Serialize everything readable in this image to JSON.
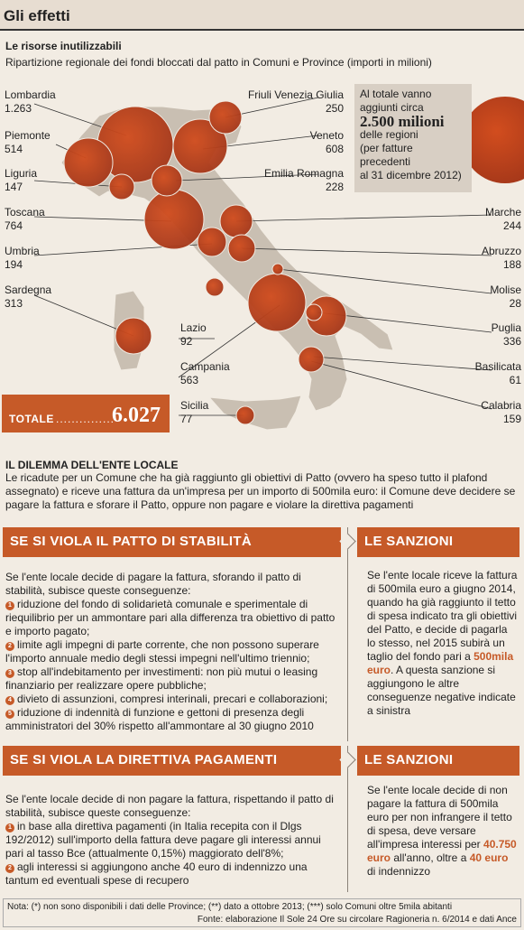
{
  "header": {
    "title": "Gli effetti"
  },
  "subtitle": "Le risorse inutilizzabili",
  "description": "Ripartizione regionale dei fondi bloccati dal patto in Comuni e Province (importi in milioni)",
  "regions_left": [
    {
      "name": "Lombardia",
      "value": "1.263"
    },
    {
      "name": "Piemonte",
      "value": "514"
    },
    {
      "name": "Liguria",
      "value": "147"
    },
    {
      "name": "Toscana",
      "value": "764"
    },
    {
      "name": "Umbria",
      "value": "194"
    },
    {
      "name": "Sardegna",
      "value": "313"
    }
  ],
  "regions_right": [
    {
      "name": "Friuli Venezia Giulia",
      "value": "250"
    },
    {
      "name": "Veneto",
      "value": "608"
    },
    {
      "name": "Emilia Romagna",
      "value": "228"
    },
    {
      "name": "Marche",
      "value": "244"
    },
    {
      "name": "Abruzzo",
      "value": "188"
    },
    {
      "name": "Molise",
      "value": "28"
    },
    {
      "name": "Puglia",
      "value": "336"
    },
    {
      "name": "Basilicata",
      "value": "61"
    },
    {
      "name": "Calabria",
      "value": "159"
    }
  ],
  "regions_center": [
    {
      "name": "Lazio",
      "value": "92"
    },
    {
      "name": "Campania",
      "value": "563"
    },
    {
      "name": "Sicilia",
      "value": "77"
    }
  ],
  "total_box": {
    "line1": "Al totale vanno",
    "line2": "aggiunti circa",
    "amount": "2.500 milioni",
    "line3": "delle regioni",
    "line4": "(per fatture",
    "line5": "precedenti",
    "line6": "al 31 dicembre 2012)"
  },
  "totale": {
    "label": "TOTALE",
    "dots": "...............",
    "value": "6.027"
  },
  "dilemma": {
    "title": "IL DILEMMA DELL'ENTE LOCALE",
    "text": "Le ricadute per un Comune che ha già raggiunto gli obiettivi di Patto (ovvero ha speso tutto il plafond assegnato) e riceve una fattura da un'impresa per un importo di 500mila euro: il Comune deve decidere se pagare la fattura e sforare il Patto, oppure non pagare e violare la direttiva pagamenti"
  },
  "section1": {
    "title": "SE SI VIOLA IL PATTO DI STABILITÀ",
    "intro": "Se l'ente locale decide di pagare la fattura, sforando il patto di stabilità, subisce queste conseguenze:",
    "items": [
      "riduzione del fondo di solidarietà comunale e sperimentale di riequilibrio per un ammontare pari alla differenza tra obiettivo di patto e importo pagato;",
      "limite agli impegni di parte corrente, che non possono superare l'importo annuale medio degli stessi impegni nell'ultimo triennio;",
      "stop all'indebitamento per investimenti: non più mutui o leasing finanziario per realizzare opere pubbliche;",
      "divieto di assunzioni, compresi interinali, precari e collaborazioni;",
      "riduzione di indennità di funzione e gettoni di presenza degli amministratori del 30% rispetto all'ammontare al 30 giugno 2010"
    ],
    "sanction_title": "LE SANZIONI",
    "sanction_a": "Se l'ente locale riceve la fattura di 500mila euro a giugno 2014, quando ha già raggiunto il tetto di spesa indicato tra gli obiettivi del Patto, e decide di pagarla lo stesso, nel 2015 subirà un taglio del fondo pari a",
    "sanction_hl": "500mila euro",
    "sanction_b": ". A questa sanzione si aggiungono le altre conseguenze negative indicate a sinistra"
  },
  "section2": {
    "title": "SE SI VIOLA LA DIRETTIVA PAGAMENTI",
    "intro": "Se l'ente locale decide di non pagare la fattura, rispettando il patto di stabilità, subisce queste conseguenze:",
    "items": [
      "in base alla direttiva pagamenti (in Italia recepita con il Dlgs 192/2012) sull'importo della fattura deve pagare gli interessi annui pari al tasso Bce (attualmente 0,15%) maggiorato dell'8%;",
      "agli interessi si aggiungono anche 40 euro di indennizzo una tantum ed eventuali spese di recupero"
    ],
    "sanction_title": "LE SANZIONI",
    "sanction_a": "Se l'ente locale decide di non pagare la fattura di 500mila euro per non infrangere il tetto di spesa, deve versare all'impresa interessi per",
    "sanction_hl1": "40.750 euro",
    "sanction_b": " all'anno, oltre a",
    "sanction_hl2": "40 euro",
    "sanction_c": " di indennizzo"
  },
  "note": {
    "line1": "Nota: (*) non sono disponibili i dati delle Province; (**) dato a ottobre 2013; (***) solo Comuni oltre 5mila abitanti",
    "line2": "Fonte: elaborazione Il Sole 24 Ore su circolare Ragioneria n. 6/2014 e dati Ance"
  },
  "colors": {
    "accent": "#c65a28",
    "land": "#c9bfb2",
    "bubble": "#b9411c"
  }
}
